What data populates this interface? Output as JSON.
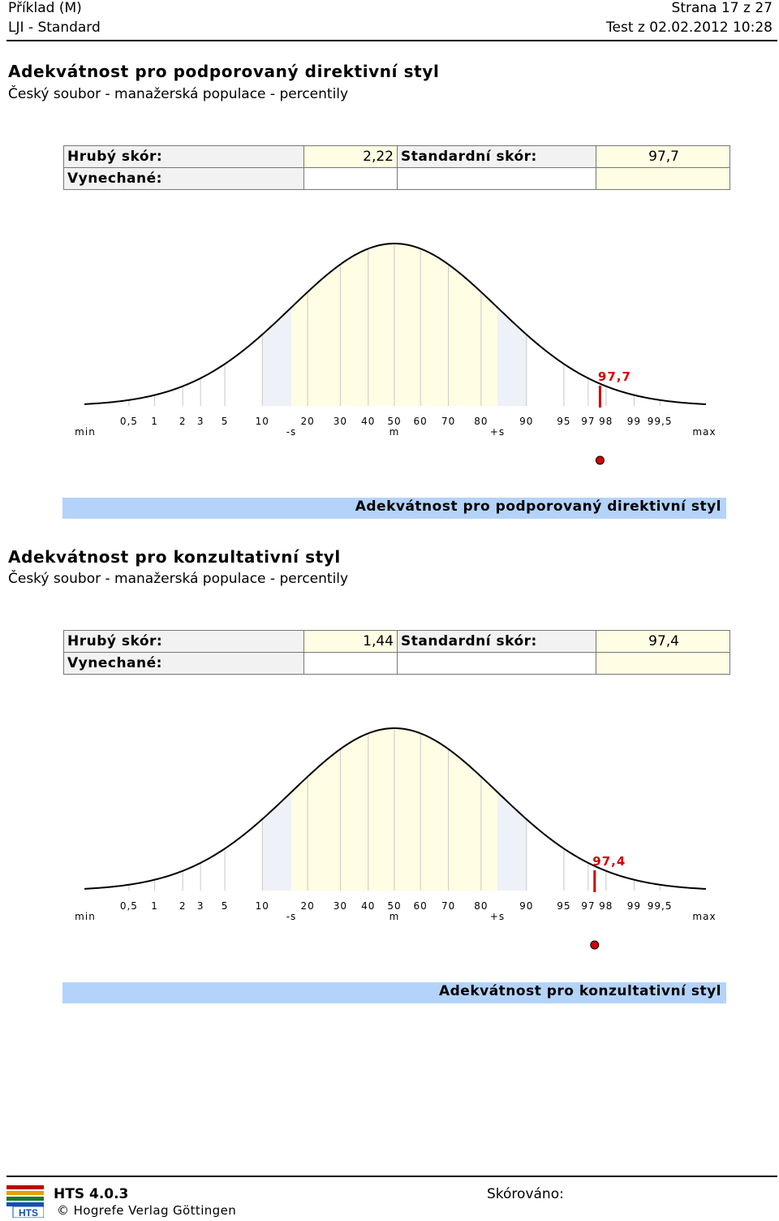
{
  "header": {
    "left_line1": "Příklad (M)",
    "left_line2": "LJI - Standard",
    "right_line1": "Strana 17 z 27",
    "right_line2": "Test z 02.02.2012 10:28"
  },
  "scale": {
    "percentile_ticks": [
      "0,5",
      "1",
      "2",
      "3",
      "5",
      "10",
      "20",
      "30",
      "40",
      "50",
      "60",
      "70",
      "80",
      "90",
      "95",
      "97",
      "98",
      "99",
      "99,5"
    ],
    "min_label": "min",
    "max_label": "max",
    "minus_s_label": "-s",
    "mean_label": "m",
    "plus_s_label": "+s"
  },
  "sections": [
    {
      "title": "Adekvátnost pro podporovaný direktivní styl",
      "subtitle": "Český soubor - manažerská populace - percentily",
      "raw_label": "Hrubý skór:",
      "raw_value": "2,22",
      "std_label": "Standardní skór:",
      "std_value": "97,7",
      "missing_label": "Vynechané:",
      "marker_label": "97,7",
      "percentile": 97.7,
      "banner": "Adekvátnost pro podporovaný direktivní styl"
    },
    {
      "title": "Adekvátnost pro konzultativní styl",
      "subtitle": "Český soubor - manažerská populace - percentily",
      "raw_label": "Hrubý skór:",
      "raw_value": "1,44",
      "std_label": "Standardní skór:",
      "std_value": "97,4",
      "missing_label": "Vynechané:",
      "marker_label": "97,4",
      "percentile": 97.4,
      "banner": "Adekvátnost pro konzultativní styl"
    }
  ],
  "footer": {
    "product": "HTS 4.0.3",
    "copyright": "© Hogrefe Verlag Göttingen",
    "scored_label": "Skórováno:",
    "logo_text": "HTS"
  },
  "colors": {
    "marker": "#d40000",
    "center_band": "#fffde3",
    "side_band": "#eef2f8",
    "banner": "#b4d3fa"
  }
}
